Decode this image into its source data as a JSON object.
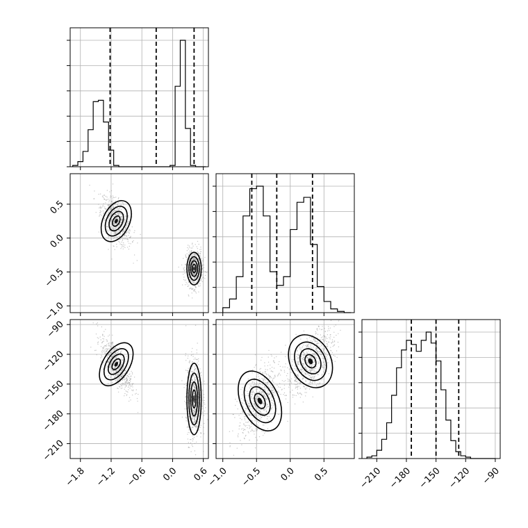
{
  "chart_data": {
    "type": "corner",
    "grid": true,
    "quantiles_marked": 3,
    "parameters": [
      {
        "id": "p0",
        "range": [
          -2.0,
          0.7
        ],
        "ticks": [
          -1.8,
          -1.2,
          -0.6,
          0.0,
          0.6
        ],
        "tick_labels": [
          "−1.8",
          "−1.2",
          "−0.6",
          "0.0",
          "0.6"
        ],
        "quantiles": [
          -1.22,
          -0.32,
          0.42
        ],
        "hist_edges": [
          -1.95,
          -1.85,
          -1.75,
          -1.65,
          -1.55,
          -1.45,
          -1.35,
          -1.25,
          -1.15,
          -1.05,
          -0.95,
          -0.85,
          -0.75,
          -0.65,
          -0.55,
          -0.45,
          -0.35,
          -0.25,
          -0.15,
          -0.05,
          0.05,
          0.15,
          0.25,
          0.35,
          0.45,
          0.55,
          0.65
        ],
        "hist_counts": [
          0.01,
          0.04,
          0.12,
          0.29,
          0.51,
          0.52,
          0.35,
          0.13,
          0.01,
          0,
          0,
          0,
          0,
          0,
          0,
          0,
          0,
          0,
          0,
          0.01,
          0.63,
          0.99,
          0.3,
          0.01,
          0,
          0
        ]
      },
      {
        "id": "p1",
        "range": [
          -1.1,
          0.95
        ],
        "ticks": [
          -1.0,
          -0.5,
          0.0,
          0.5
        ],
        "tick_labels": [
          "−1.0",
          "−0.5",
          "0.0",
          "0.5"
        ],
        "quantiles": [
          -0.57,
          -0.2,
          0.33
        ],
        "hist_edges": [
          -1.0,
          -0.9,
          -0.8,
          -0.7,
          -0.6,
          -0.5,
          -0.4,
          -0.3,
          -0.2,
          -0.1,
          0.0,
          0.1,
          0.2,
          0.3,
          0.4,
          0.5,
          0.6,
          0.7,
          0.8,
          0.9
        ],
        "hist_counts": [
          0.04,
          0.11,
          0.29,
          0.78,
          1.0,
          1.02,
          0.78,
          0.33,
          0.22,
          0.29,
          0.67,
          0.89,
          0.93,
          0.55,
          0.21,
          0.09,
          0.03,
          0.01,
          0
        ]
      },
      {
        "id": "p2",
        "range": [
          -225,
          -85
        ],
        "ticks": [
          -210,
          -180,
          -150,
          -120,
          -90
        ],
        "tick_labels": [
          "−210",
          "−180",
          "−150",
          "−120",
          "−90"
        ],
        "quantiles": [
          -175,
          -150,
          -127
        ],
        "hist_edges": [
          -220,
          -215,
          -210,
          -205,
          -200,
          -195,
          -190,
          -185,
          -180,
          -175,
          -170,
          -165,
          -160,
          -155,
          -150,
          -145,
          -140,
          -135,
          -130,
          -125,
          -120,
          -115,
          -110,
          -105,
          -100,
          -95,
          -90
        ],
        "hist_counts": [
          0.01,
          0.02,
          0.06,
          0.14,
          0.26,
          0.46,
          0.66,
          0.79,
          0.86,
          0.83,
          0.78,
          0.86,
          0.92,
          0.84,
          0.71,
          0.5,
          0.28,
          0.13,
          0.05,
          0.02,
          0.01,
          0,
          0,
          0,
          0,
          0
        ]
      }
    ],
    "density_panels": [
      {
        "x": "p0",
        "y": "p1",
        "modes": [
          {
            "cx": -1.1,
            "cy": 0.25,
            "sx": 0.13,
            "sy": 0.16,
            "rho": -0.55,
            "weight": 0.5
          },
          {
            "cx": 0.42,
            "cy": -0.45,
            "sx": 0.07,
            "sy": 0.12,
            "rho": 0.0,
            "weight": 0.5
          }
        ]
      },
      {
        "x": "p0",
        "y": "p2",
        "modes": [
          {
            "cx": -1.1,
            "cy": -130,
            "sx": 0.13,
            "sy": 12,
            "rho": -0.7,
            "weight": 0.5
          },
          {
            "cx": 0.42,
            "cy": -165,
            "sx": 0.07,
            "sy": 18,
            "rho": 0.0,
            "weight": 0.5
          }
        ]
      },
      {
        "x": "p1",
        "y": "p2",
        "modes": [
          {
            "cx": -0.45,
            "cy": -167,
            "sx": 0.14,
            "sy": 16,
            "rho": 0.55,
            "weight": 0.5
          },
          {
            "cx": 0.3,
            "cy": -127,
            "sx": 0.15,
            "sy": 14,
            "rho": 0.6,
            "weight": 0.5
          }
        ]
      }
    ]
  }
}
